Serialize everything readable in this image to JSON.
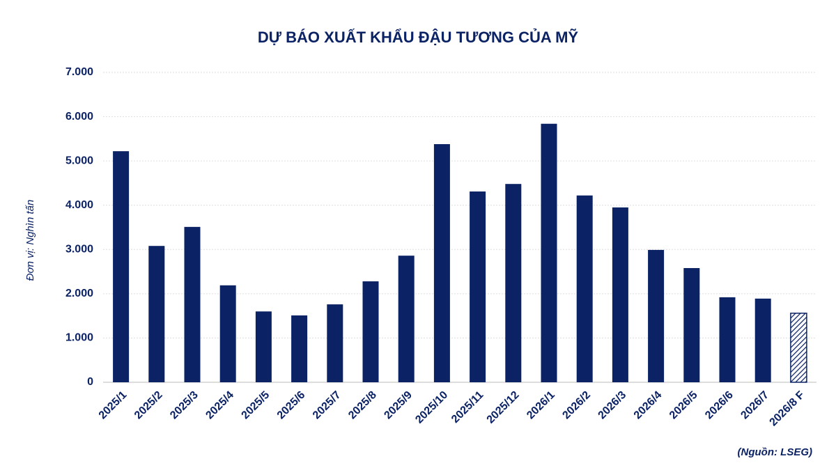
{
  "chart_data": {
    "type": "bar",
    "title": "DỰ BÁO XUẤT KHẨU ĐẬU TƯƠNG CỦA MỸ",
    "y_label": "Đơn vị: Nghìn tấn",
    "source": "(Nguồn: LSEG)",
    "categories": [
      "2025/1",
      "2025/2",
      "2025/3",
      "2025/4",
      "2025/5",
      "2025/6",
      "2025/7",
      "2025/8",
      "2025/9",
      "2025/10",
      "2025/11",
      "2025/12",
      "2026/1",
      "2026/2",
      "2026/3",
      "2026/4",
      "2026/5",
      "2026/6",
      "2026/7",
      "2026/8 F"
    ],
    "values": [
      5220,
      3080,
      3510,
      2190,
      1600,
      1510,
      1760,
      2280,
      2860,
      5380,
      4310,
      4480,
      5840,
      4220,
      3950,
      2990,
      2580,
      1920,
      1890,
      1560
    ],
    "hatched_categories": [
      "2026/8 F"
    ],
    "color": "#0b2265",
    "ylim": [
      0,
      7000
    ],
    "yticks": [
      0,
      {
        "value": 1000,
        "label": "1.000"
      },
      {
        "value": 2000,
        "label": "2.000"
      },
      {
        "value": 3000,
        "label": "3.000"
      },
      {
        "value": 4000,
        "label": "4.000"
      },
      {
        "value": 5000,
        "label": "5.000"
      },
      {
        "value": 6000,
        "label": "6.000"
      },
      {
        "value": 7000,
        "label": "7.000"
      }
    ],
    "grid": true
  }
}
